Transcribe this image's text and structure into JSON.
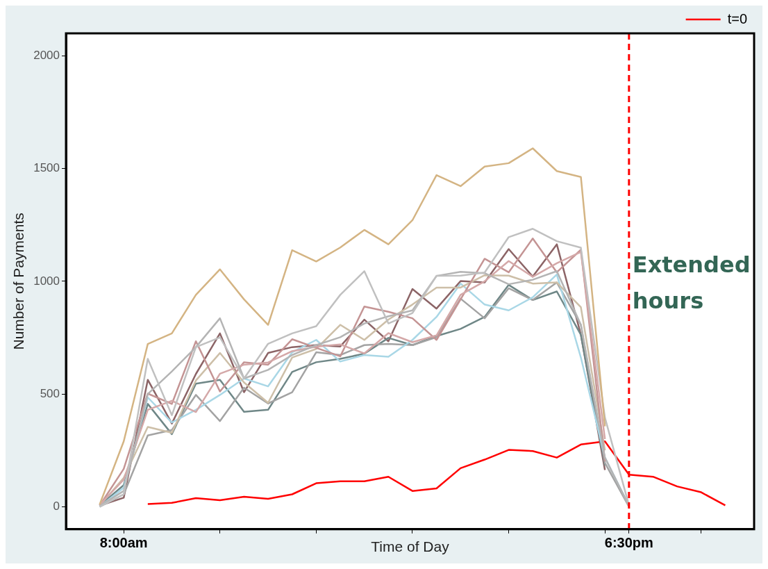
{
  "chart_data": {
    "type": "line",
    "xlabel": "Time of Day",
    "ylabel": "Number of Payments",
    "xlim": [
      6.8,
      21.1
    ],
    "xticks": [
      {
        "value": 8,
        "label": "8:00am"
      },
      {
        "value": 10,
        "label": null
      },
      {
        "value": 12,
        "label": null
      },
      {
        "value": 14,
        "label": null
      },
      {
        "value": 16,
        "label": null
      },
      {
        "value": 18,
        "label": null
      },
      {
        "value": 18.5,
        "label": "6:30pm"
      },
      {
        "value": 20,
        "label": null
      }
    ],
    "ylim": [
      -100,
      2100
    ],
    "yticks": [
      0,
      500,
      1000,
      1500,
      2000
    ],
    "grid": false,
    "legend": "top right",
    "marker": "none",
    "line_style": "solid",
    "ref_lines": [
      {
        "axis": "x",
        "value": 18.5,
        "label": "Extended hours",
        "color": "#ff0000",
        "line_style": "dashed"
      }
    ],
    "series": [
      {
        "color": "#d4b483",
        "x": [
          7.5,
          8,
          8.5,
          9,
          9.5,
          10,
          10.5,
          11,
          11.5,
          12,
          12.5,
          13,
          13.5,
          14,
          14.5,
          15,
          15.5,
          16,
          16.5,
          17,
          17.5,
          18
        ],
        "values": [
          10,
          290,
          722,
          769,
          940,
          1053,
          920,
          807,
          1138,
          1088,
          1150,
          1228,
          1164,
          1271,
          1471,
          1422,
          1509,
          1524,
          1590,
          1489,
          1463,
          357
        ]
      },
      {
        "color": "#c0c0c0",
        "x": [
          7.5,
          8,
          8.5,
          9,
          9.5,
          10,
          10.5,
          11,
          11.5,
          12,
          12.5,
          13,
          13.5,
          14,
          14.5,
          15,
          15.5,
          16,
          16.5,
          17,
          17.5,
          18,
          18.5
        ],
        "values": [
          0,
          55,
          656,
          406,
          708,
          751,
          569,
          723,
          769,
          801,
          940,
          1045,
          813,
          859,
          1024,
          1025,
          1039,
          1196,
          1233,
          1178,
          1149,
          395,
          6
        ]
      },
      {
        "color": "#b4b4b4",
        "x": [
          7.5,
          8,
          8.5,
          9,
          9.5,
          10,
          10.5,
          11,
          11.5,
          12,
          12.5,
          13,
          13.5,
          14,
          14.5,
          15,
          15.5,
          16,
          16.5,
          17,
          17.5,
          18,
          18.5
        ],
        "values": [
          3,
          70,
          500,
          600,
          708,
          836,
          569,
          607,
          673,
          717,
          752,
          813,
          845,
          871,
          1024,
          1042,
          1036,
          987,
          1007,
          1045,
          807,
          218,
          3
        ]
      },
      {
        "color": "#d4a8a8",
        "x": [
          7.5,
          8,
          8.5,
          9,
          9.5,
          10,
          10.5,
          11,
          11.5,
          12,
          12.5,
          13,
          13.5,
          14,
          14.5,
          15,
          15.5,
          16,
          16.5,
          17,
          17.5,
          18
        ],
        "values": [
          8,
          120,
          430,
          470,
          420,
          590,
          630,
          640,
          690,
          710,
          720,
          680,
          770,
          730,
          760,
          940,
          1000,
          1090,
          1020,
          1080,
          1130,
          300
        ]
      },
      {
        "color": "#c49494",
        "x": [
          7.5,
          8,
          8.5,
          9,
          9.5,
          10,
          10.5,
          11,
          11.5,
          12,
          12.5,
          13,
          13.5,
          14,
          14.5,
          15,
          15.5,
          16,
          16.5,
          17,
          17.5,
          18
        ],
        "values": [
          5,
          168,
          502,
          456,
          734,
          511,
          641,
          630,
          743,
          705,
          667,
          888,
          865,
          836,
          740,
          920,
          1100,
          1040,
          1190,
          1040,
          1140,
          200
        ]
      },
      {
        "color": "#cdbfa8",
        "x": [
          7.5,
          8,
          8.5,
          9,
          9.5,
          10,
          10.5,
          11,
          11.5,
          12,
          12.5,
          13,
          13.5,
          14,
          14.5,
          15,
          15.5,
          16,
          16.5,
          17,
          17.5,
          18
        ],
        "values": [
          5,
          128,
          354,
          328,
          560,
          682,
          551,
          461,
          662,
          700,
          807,
          740,
          830,
          897,
          972,
          972,
          1027,
          1025,
          990,
          995,
          885,
          250
        ]
      },
      {
        "color": "#a9d7e6",
        "x": [
          7.5,
          8,
          8.5,
          9,
          9.5,
          10,
          10.5,
          11,
          11.5,
          12,
          12.5,
          13,
          13.5,
          14,
          14.5,
          15,
          15.5,
          16,
          16.5,
          17,
          17.5,
          18,
          18.5
        ],
        "values": [
          0,
          84,
          485,
          374,
          430,
          496,
          569,
          534,
          685,
          740,
          644,
          673,
          665,
          740,
          842,
          990,
          897,
          871,
          929,
          1030,
          662,
          218,
          5
        ]
      },
      {
        "color": "#a3a3a3",
        "x": [
          7.5,
          8,
          8.5,
          9,
          9.5,
          10,
          10.5,
          11,
          11.5,
          12,
          12.5,
          13,
          13.5,
          14,
          14.5,
          15,
          15.5,
          16,
          16.5,
          17,
          17.5,
          18,
          18.5
        ],
        "values": [
          0,
          55,
          316,
          340,
          496,
          380,
          528,
          458,
          508,
          685,
          673,
          717,
          722,
          717,
          752,
          923,
          836,
          969,
          917,
          995,
          807,
          194,
          0
        ]
      },
      {
        "color": "#6f8787",
        "x": [
          7.5,
          8,
          8.5,
          9,
          9.5,
          10,
          10.5,
          11,
          11.5,
          12,
          12.5,
          13,
          13.5,
          14,
          14.5,
          15,
          15.5,
          16,
          16.5,
          17,
          17.5,
          18
        ],
        "values": [
          5,
          96,
          456,
          322,
          546,
          563,
          421,
          430,
          598,
          641,
          656,
          679,
          749,
          717,
          757,
          789,
          842,
          984,
          917,
          955,
          763,
          183
        ]
      },
      {
        "color": "#8c6466",
        "x": [
          7.5,
          8,
          8.5,
          9,
          9.5,
          10,
          10.5,
          11,
          11.5,
          12,
          12.5,
          13,
          13.5,
          14,
          14.5,
          15,
          15.5,
          16,
          16.5,
          17,
          17.5,
          18
        ],
        "values": [
          5,
          40,
          563,
          369,
          589,
          769,
          508,
          682,
          708,
          717,
          711,
          830,
          734,
          966,
          879,
          1001,
          995,
          1143,
          1021,
          1164,
          763,
          163
        ]
      },
      {
        "name": "t=0",
        "color": "#ff0000",
        "x": [
          8.5,
          9,
          9.5,
          10,
          10.5,
          11,
          11.5,
          12,
          12.5,
          13,
          13.5,
          14,
          14.5,
          15,
          15.5,
          16,
          16.5,
          17,
          17.5,
          18,
          18.5,
          19,
          19.5,
          20,
          20.5
        ],
        "values": [
          12,
          17,
          38,
          29,
          44,
          35,
          55,
          104,
          113,
          113,
          133,
          70,
          81,
          171,
          209,
          252,
          247,
          218,
          276,
          290,
          142,
          133,
          90,
          64,
          6
        ]
      }
    ]
  }
}
